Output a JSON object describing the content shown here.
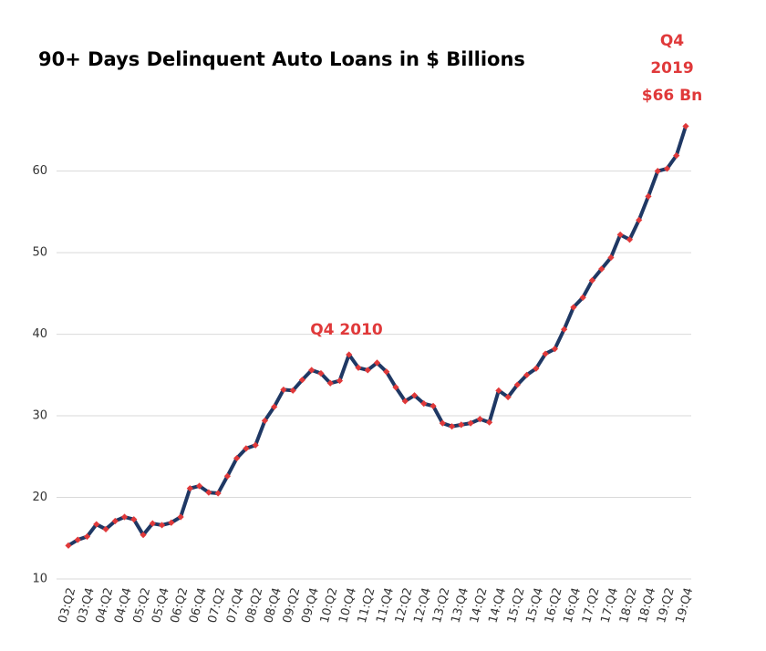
{
  "chart_data": {
    "type": "line",
    "title": "90+ Days Delinquent Auto Loans in $ Billions",
    "annotations": [
      {
        "text": "Q4 2010"
      },
      {
        "lines": [
          "Q4",
          "2019",
          "$66 Bn"
        ]
      }
    ],
    "categories": [
      "03:Q2",
      null,
      "03:Q4",
      null,
      "04:Q2",
      null,
      "04:Q4",
      null,
      "05:Q2",
      null,
      "05:Q4",
      null,
      "06:Q2",
      null,
      "06:Q4",
      null,
      "07:Q2",
      null,
      "07:Q4",
      null,
      "08:Q2",
      null,
      "08:Q4",
      null,
      "09:Q2",
      null,
      "09:Q4",
      null,
      "10:Q2",
      null,
      "10:Q4",
      null,
      "11:Q2",
      null,
      "11:Q4",
      null,
      "12:Q2",
      null,
      "12:Q4",
      null,
      "13:Q2",
      null,
      "13:Q4",
      null,
      "14:Q2",
      null,
      "14:Q4",
      null,
      "15:Q2",
      null,
      "15:Q4",
      null,
      "16:Q2",
      null,
      "16:Q4",
      null,
      "17:Q2",
      null,
      "17:Q4",
      null,
      "18:Q2",
      null,
      "18:Q4",
      null,
      "19:Q2",
      null,
      "19:Q4"
    ],
    "series": [
      {
        "name": "90+ Days Delinquent Auto Loans",
        "color": "#1f3864",
        "marker_color": "#e0393a",
        "values": [
          14.1,
          14.8,
          15.2,
          16.7,
          16.1,
          17.1,
          17.6,
          17.3,
          15.4,
          16.8,
          16.6,
          16.9,
          17.6,
          21.1,
          21.4,
          20.6,
          20.5,
          22.6,
          24.8,
          26.0,
          26.4,
          29.4,
          31.1,
          33.2,
          33.1,
          34.4,
          35.6,
          35.2,
          34.0,
          34.3,
          37.5,
          35.9,
          35.6,
          36.5,
          35.4,
          33.5,
          31.8,
          32.5,
          31.5,
          31.2,
          29.1,
          28.7,
          28.9,
          29.1,
          29.6,
          29.2,
          33.1,
          32.3,
          33.8,
          35.0,
          35.8,
          37.6,
          38.2,
          40.6,
          43.3,
          44.5,
          46.6,
          48.0,
          49.4,
          52.2,
          51.6,
          54.0,
          56.9,
          60.0,
          60.3,
          61.9,
          65.5
        ]
      }
    ],
    "ylim": [
      10,
      67
    ],
    "yticks": [
      10,
      20,
      30,
      40,
      50,
      60
    ],
    "grid": true
  }
}
